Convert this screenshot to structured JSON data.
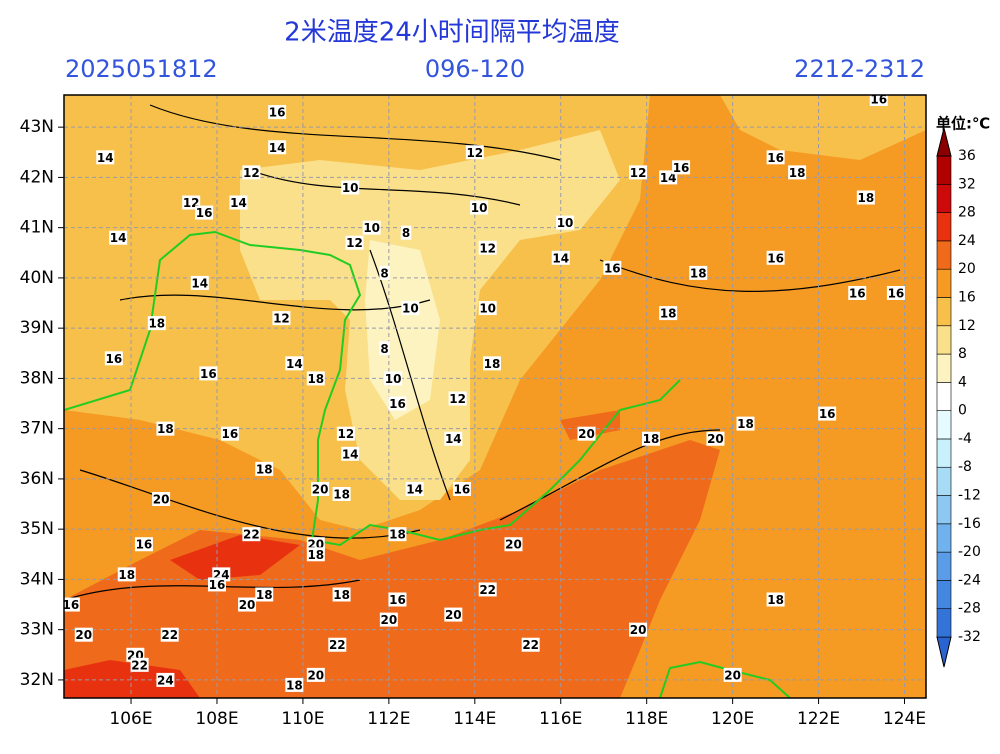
{
  "title": "2米温度24小时间隔平均温度",
  "init_time": "2025051812",
  "forecast_hours": "096-120",
  "valid_time": "2212-2312",
  "map": {
    "type": "contour",
    "xlim": [
      104.44,
      124.5
    ],
    "ylim": [
      31.64,
      43.64
    ],
    "grid": true,
    "xticks": [
      {
        "value": 106,
        "label": "106E"
      },
      {
        "value": 108,
        "label": "108E"
      },
      {
        "value": 110,
        "label": "110E"
      },
      {
        "value": 112,
        "label": "112E"
      },
      {
        "value": 114,
        "label": "114E"
      },
      {
        "value": 116,
        "label": "116E"
      },
      {
        "value": 118,
        "label": "118E"
      },
      {
        "value": 120,
        "label": "120E"
      },
      {
        "value": 122,
        "label": "122E"
      },
      {
        "value": 124,
        "label": "124E"
      }
    ],
    "yticks": [
      {
        "value": 32,
        "label": "32N"
      },
      {
        "value": 33,
        "label": "33N"
      },
      {
        "value": 34,
        "label": "34N"
      },
      {
        "value": 35,
        "label": "35N"
      },
      {
        "value": 36,
        "label": "36N"
      },
      {
        "value": 37,
        "label": "37N"
      },
      {
        "value": 38,
        "label": "38N"
      },
      {
        "value": 39,
        "label": "39N"
      },
      {
        "value": 40,
        "label": "40N"
      },
      {
        "value": 41,
        "label": "41N"
      },
      {
        "value": 42,
        "label": "42N"
      },
      {
        "value": 43,
        "label": "43N"
      }
    ],
    "contour_labels": [
      {
        "lon": 109.4,
        "lat": 43.3,
        "value": 16
      },
      {
        "lon": 109.4,
        "lat": 42.6,
        "value": 14
      },
      {
        "lon": 105.4,
        "lat": 42.4,
        "value": 14
      },
      {
        "lon": 108.8,
        "lat": 42.1,
        "value": 12
      },
      {
        "lon": 111.1,
        "lat": 41.8,
        "value": 10
      },
      {
        "lon": 107.4,
        "lat": 41.5,
        "value": 12
      },
      {
        "lon": 107.7,
        "lat": 41.3,
        "value": 16
      },
      {
        "lon": 108.5,
        "lat": 41.5,
        "value": 14
      },
      {
        "lon": 105.7,
        "lat": 40.8,
        "value": 14
      },
      {
        "lon": 111.2,
        "lat": 40.7,
        "value": 12
      },
      {
        "lon": 111.6,
        "lat": 41.0,
        "value": 10
      },
      {
        "lon": 112.4,
        "lat": 40.9,
        "value": 8
      },
      {
        "lon": 114.0,
        "lat": 42.5,
        "value": 12
      },
      {
        "lon": 114.1,
        "lat": 41.4,
        "value": 10
      },
      {
        "lon": 114.3,
        "lat": 40.6,
        "value": 12
      },
      {
        "lon": 116.1,
        "lat": 41.1,
        "value": 10
      },
      {
        "lon": 116.0,
        "lat": 40.4,
        "value": 14
      },
      {
        "lon": 117.2,
        "lat": 40.2,
        "value": 16
      },
      {
        "lon": 117.8,
        "lat": 42.1,
        "value": 12
      },
      {
        "lon": 118.5,
        "lat": 42.0,
        "value": 14
      },
      {
        "lon": 118.8,
        "lat": 42.2,
        "value": 16
      },
      {
        "lon": 121.0,
        "lat": 42.4,
        "value": 16
      },
      {
        "lon": 121.5,
        "lat": 42.1,
        "value": 18
      },
      {
        "lon": 123.1,
        "lat": 41.6,
        "value": 18
      },
      {
        "lon": 123.4,
        "lat": 43.56,
        "value": 16
      },
      {
        "lon": 119.2,
        "lat": 40.1,
        "value": 18
      },
      {
        "lon": 121.0,
        "lat": 40.4,
        "value": 16
      },
      {
        "lon": 122.9,
        "lat": 39.7,
        "value": 16
      },
      {
        "lon": 123.8,
        "lat": 39.7,
        "value": 16
      },
      {
        "lon": 118.5,
        "lat": 39.3,
        "value": 18
      },
      {
        "lon": 107.6,
        "lat": 39.9,
        "value": 14
      },
      {
        "lon": 109.5,
        "lat": 39.2,
        "value": 12
      },
      {
        "lon": 111.9,
        "lat": 40.1,
        "value": 8
      },
      {
        "lon": 112.5,
        "lat": 39.4,
        "value": 10
      },
      {
        "lon": 114.3,
        "lat": 39.4,
        "value": 10
      },
      {
        "lon": 106.6,
        "lat": 39.1,
        "value": 18
      },
      {
        "lon": 105.6,
        "lat": 38.4,
        "value": 16
      },
      {
        "lon": 107.8,
        "lat": 38.1,
        "value": 16
      },
      {
        "lon": 109.8,
        "lat": 38.3,
        "value": 14
      },
      {
        "lon": 110.3,
        "lat": 38.0,
        "value": 18
      },
      {
        "lon": 111.9,
        "lat": 38.6,
        "value": 8
      },
      {
        "lon": 112.1,
        "lat": 38.0,
        "value": 10
      },
      {
        "lon": 114.4,
        "lat": 38.3,
        "value": 18
      },
      {
        "lon": 112.2,
        "lat": 37.5,
        "value": 16
      },
      {
        "lon": 113.6,
        "lat": 37.6,
        "value": 12
      },
      {
        "lon": 106.8,
        "lat": 37.0,
        "value": 18
      },
      {
        "lon": 108.3,
        "lat": 36.9,
        "value": 16
      },
      {
        "lon": 111.0,
        "lat": 36.9,
        "value": 12
      },
      {
        "lon": 111.1,
        "lat": 36.5,
        "value": 14
      },
      {
        "lon": 113.5,
        "lat": 36.8,
        "value": 14
      },
      {
        "lon": 116.6,
        "lat": 36.9,
        "value": 20
      },
      {
        "lon": 118.1,
        "lat": 36.8,
        "value": 18
      },
      {
        "lon": 119.6,
        "lat": 36.8,
        "value": 20
      },
      {
        "lon": 120.3,
        "lat": 37.1,
        "value": 18
      },
      {
        "lon": 122.2,
        "lat": 37.3,
        "value": 16
      },
      {
        "lon": 109.1,
        "lat": 36.2,
        "value": 18
      },
      {
        "lon": 106.7,
        "lat": 35.6,
        "value": 20
      },
      {
        "lon": 110.4,
        "lat": 35.8,
        "value": 20
      },
      {
        "lon": 110.9,
        "lat": 35.7,
        "value": 18
      },
      {
        "lon": 112.6,
        "lat": 35.8,
        "value": 14
      },
      {
        "lon": 113.7,
        "lat": 35.8,
        "value": 16
      },
      {
        "lon": 108.8,
        "lat": 34.9,
        "value": 22
      },
      {
        "lon": 106.3,
        "lat": 34.7,
        "value": 16
      },
      {
        "lon": 110.3,
        "lat": 34.7,
        "value": 20
      },
      {
        "lon": 110.3,
        "lat": 34.5,
        "value": 18
      },
      {
        "lon": 112.2,
        "lat": 34.9,
        "value": 18
      },
      {
        "lon": 114.9,
        "lat": 34.7,
        "value": 20
      },
      {
        "lon": 105.9,
        "lat": 34.1,
        "value": 18
      },
      {
        "lon": 108.1,
        "lat": 34.1,
        "value": 24
      },
      {
        "lon": 108.0,
        "lat": 33.9,
        "value": 16
      },
      {
        "lon": 104.6,
        "lat": 33.5,
        "value": 16
      },
      {
        "lon": 109.1,
        "lat": 33.7,
        "value": 18
      },
      {
        "lon": 108.7,
        "lat": 33.5,
        "value": 20
      },
      {
        "lon": 110.9,
        "lat": 33.7,
        "value": 18
      },
      {
        "lon": 112.2,
        "lat": 33.6,
        "value": 16
      },
      {
        "lon": 114.3,
        "lat": 33.8,
        "value": 22
      },
      {
        "lon": 112.0,
        "lat": 33.2,
        "value": 20
      },
      {
        "lon": 113.5,
        "lat": 33.3,
        "value": 20
      },
      {
        "lon": 121.0,
        "lat": 33.6,
        "value": 18
      },
      {
        "lon": 117.8,
        "lat": 33.0,
        "value": 20
      },
      {
        "lon": 104.9,
        "lat": 32.9,
        "value": 20
      },
      {
        "lon": 106.9,
        "lat": 32.9,
        "value": 22
      },
      {
        "lon": 106.1,
        "lat": 32.5,
        "value": 20
      },
      {
        "lon": 106.2,
        "lat": 32.3,
        "value": 22
      },
      {
        "lon": 110.8,
        "lat": 32.7,
        "value": 22
      },
      {
        "lon": 115.3,
        "lat": 32.7,
        "value": 22
      },
      {
        "lon": 106.8,
        "lat": 32.0,
        "value": 24
      },
      {
        "lon": 109.8,
        "lat": 31.9,
        "value": 18
      },
      {
        "lon": 110.3,
        "lat": 32.1,
        "value": 20
      },
      {
        "lon": 120.0,
        "lat": 32.1,
        "value": 20
      }
    ]
  },
  "colorbar": {
    "unit_label": "单位:℃",
    "ticks": [
      -32,
      -28,
      -24,
      -20,
      -16,
      -12,
      -8,
      -4,
      0,
      4,
      8,
      12,
      16,
      20,
      24,
      28,
      32,
      36
    ],
    "colors": [
      "#2a64d0",
      "#3473d8",
      "#4487e0",
      "#5a9ce8",
      "#6fb2ee",
      "#8cc8f2",
      "#a8dcf6",
      "#c8f1fb",
      "#e6fbff",
      "#ffffff",
      "#fdf3c0",
      "#fae08a",
      "#f7c04a",
      "#f59a22",
      "#ef6a1a",
      "#e8320f",
      "#cc0a0a",
      "#b00000",
      "#8a0000"
    ]
  }
}
